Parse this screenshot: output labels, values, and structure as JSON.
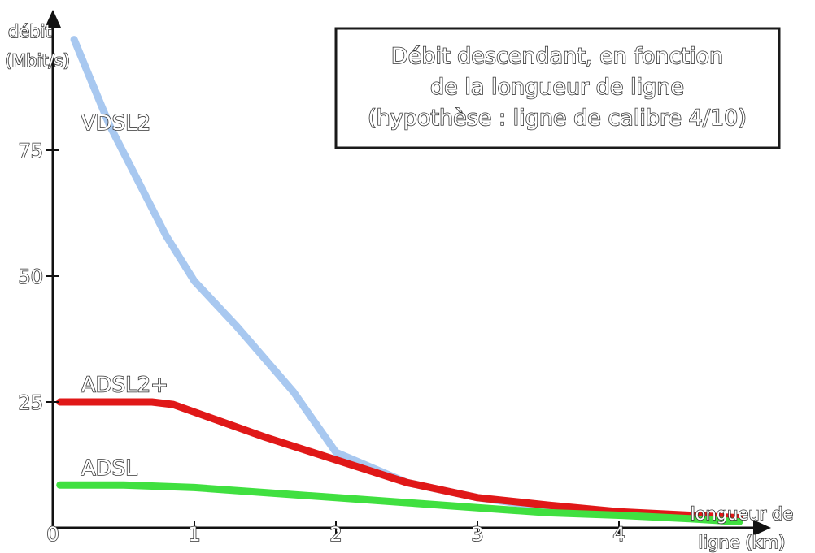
{
  "chart_data": {
    "type": "line",
    "title_lines": [
      "Débit descendant, en fonction",
      "de la longueur de ligne",
      "(hypothèse : ligne de calibre 4/10)"
    ],
    "ylabel_lines": [
      "débit",
      "(Mbit/s)"
    ],
    "xlabel_lines": [
      "longueur de",
      "ligne (km)"
    ],
    "xlim": [
      0,
      5
    ],
    "ylim": [
      0,
      100
    ],
    "x_ticks": [
      {
        "value": 0,
        "label": "0"
      },
      {
        "value": 1,
        "label": "1"
      },
      {
        "value": 2,
        "label": "2"
      },
      {
        "value": 3,
        "label": "3"
      },
      {
        "value": 4,
        "label": "4"
      }
    ],
    "y_ticks": [
      {
        "value": 25,
        "label": "25"
      },
      {
        "value": 50,
        "label": "50"
      },
      {
        "value": 75,
        "label": "75"
      }
    ],
    "grid": false,
    "legend": "none",
    "series": [
      {
        "name": "VDSL2",
        "color": "#a8c8f0",
        "label_at": [
          0.2,
          79
        ],
        "points": [
          [
            0.15,
            97
          ],
          [
            0.4,
            80
          ],
          [
            0.8,
            58
          ],
          [
            1.0,
            49
          ],
          [
            1.3,
            40
          ],
          [
            1.7,
            27
          ],
          [
            2.0,
            15
          ],
          [
            2.5,
            9
          ],
          [
            3.0,
            6
          ],
          [
            3.5,
            4
          ],
          [
            4.0,
            3
          ],
          [
            4.5,
            2
          ],
          [
            4.85,
            1.5
          ]
        ]
      },
      {
        "name": "ADSL2+",
        "color": "#e01818",
        "label_at": [
          0.2,
          27
        ],
        "points": [
          [
            0.05,
            25
          ],
          [
            0.4,
            25
          ],
          [
            0.7,
            25
          ],
          [
            0.85,
            24.5
          ],
          [
            1.1,
            22
          ],
          [
            1.5,
            18
          ],
          [
            2.0,
            13.5
          ],
          [
            2.5,
            9
          ],
          [
            3.0,
            6
          ],
          [
            3.5,
            4.5
          ],
          [
            4.0,
            3.2
          ],
          [
            4.5,
            2.5
          ],
          [
            4.85,
            2
          ]
        ]
      },
      {
        "name": "ADSL",
        "color": "#40e040",
        "label_at": [
          0.2,
          10.5
        ],
        "points": [
          [
            0.05,
            8.5
          ],
          [
            0.5,
            8.5
          ],
          [
            1.0,
            8
          ],
          [
            1.5,
            7
          ],
          [
            2.0,
            6
          ],
          [
            2.5,
            5
          ],
          [
            3.0,
            4
          ],
          [
            3.5,
            3
          ],
          [
            4.0,
            2.5
          ],
          [
            4.5,
            1.8
          ],
          [
            4.85,
            1.2
          ]
        ]
      }
    ]
  }
}
